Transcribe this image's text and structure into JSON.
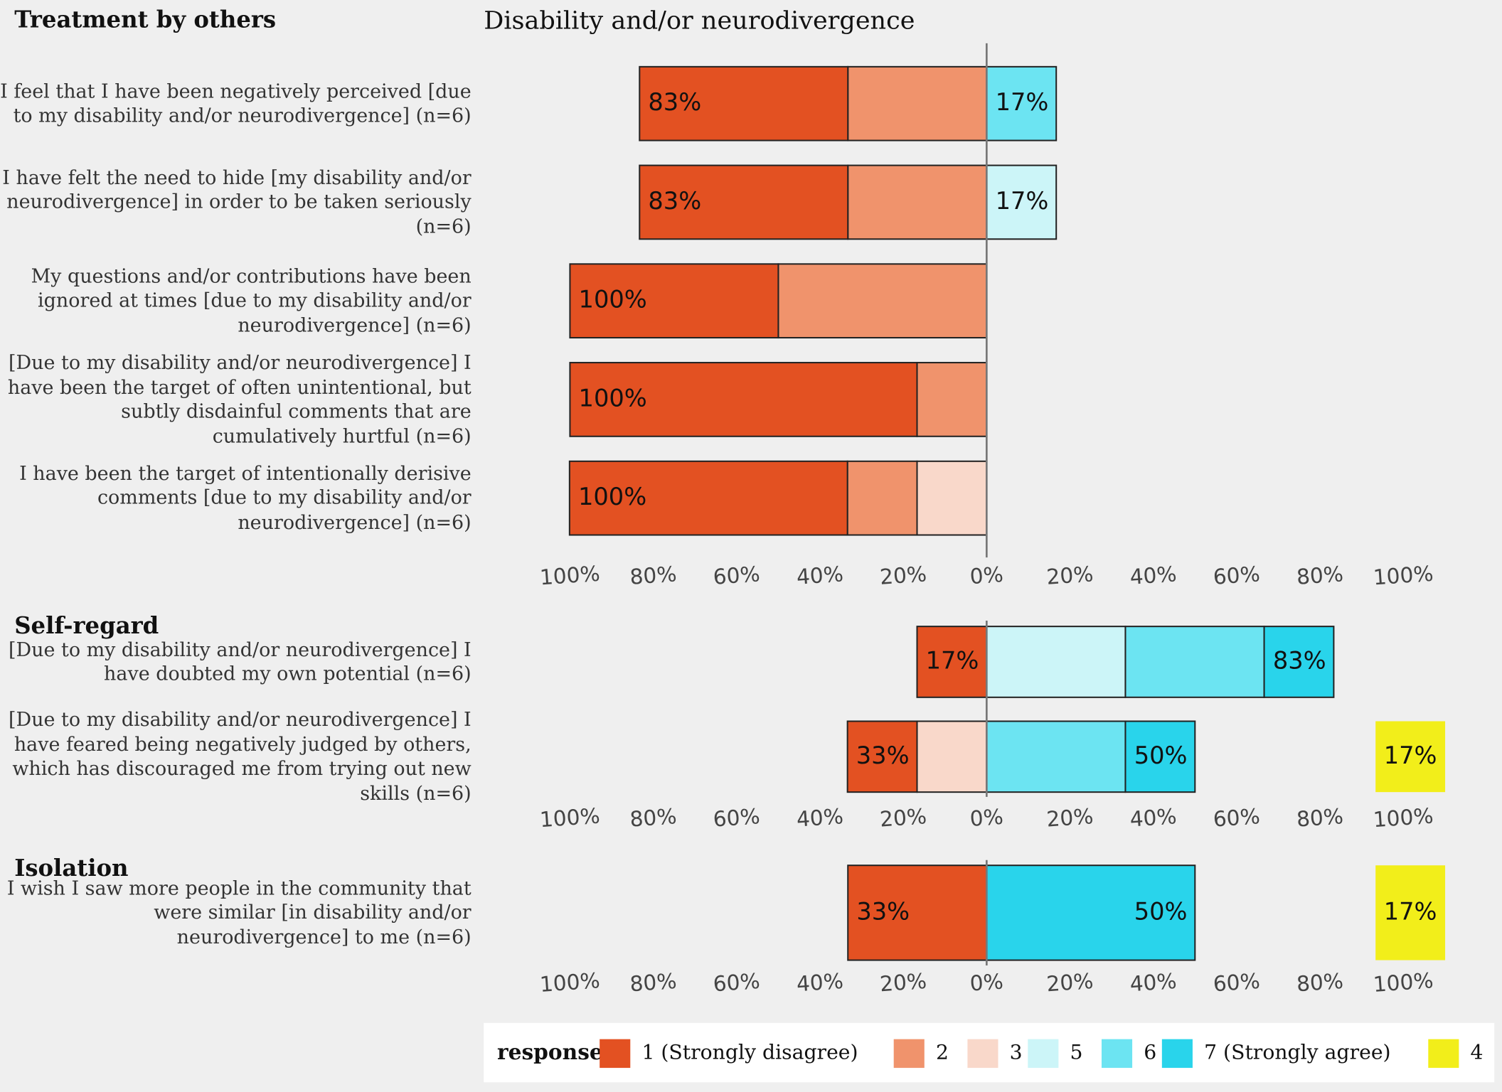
{
  "chart_data": [
    {
      "type": "diverging-bar",
      "title": "Treatment by others",
      "facet": "Disability and/or neurodivergence",
      "legend_title": "response",
      "categories": [
        "I feel that I have been negatively perceived [due to my disability and/or neurodivergence] (n=6)",
        "I have felt the need to hide [my disability and/or neurodivergence] in order to be taken seriously (n=6)",
        "My questions and/or contributions have been ignored at times [due to my disability and/or neurodivergence] (n=6)",
        "[Due to my disability and/or neurodivergence] I have been the target of often unintentional, but subtly disdainful comments that are cumulatively hurtful (n=6)",
        "I have been the target of intentionally derisive comments [due to my disability and/or neurodivergence] (n=6)"
      ],
      "series": [
        {
          "name": "1 (Strongly disagree)",
          "color": "#e35122",
          "side": "left",
          "values": [
            50,
            50,
            50,
            83.3,
            66.7
          ]
        },
        {
          "name": "2",
          "color": "#f0936c",
          "side": "left",
          "values": [
            33.3,
            33.3,
            50,
            16.7,
            16.7
          ]
        },
        {
          "name": "3",
          "color": "#f9d8ca",
          "side": "left",
          "values": [
            null,
            null,
            null,
            null,
            16.7
          ]
        },
        {
          "name": "5",
          "color": "#ccf5f8",
          "side": "right",
          "values": [
            null,
            16.7,
            null,
            null,
            null
          ]
        },
        {
          "name": "6",
          "color": "#6ce4f2",
          "side": "right",
          "values": [
            16.7,
            null,
            null,
            null,
            null
          ]
        },
        {
          "name": "7 (Strongly agree)",
          "color": "#29d4eb",
          "side": "right",
          "values": [
            null,
            null,
            null,
            null,
            null
          ]
        },
        {
          "name": "4",
          "color": "#f2ee1a",
          "side": "neutral",
          "values": [
            null,
            null,
            null,
            null,
            null
          ]
        }
      ],
      "left_totals": {
        "values": [
          83,
          83,
          100,
          100,
          100
        ],
        "value_labels": [
          "83%",
          "83%",
          "100%",
          "100%",
          "100%"
        ]
      },
      "right_totals": {
        "values": [
          17,
          17,
          null,
          null,
          null
        ],
        "value_labels": [
          "17%",
          "17%",
          null,
          null,
          null
        ]
      },
      "neutral_totals": {
        "values": [
          null,
          null,
          null,
          null,
          null
        ],
        "value_labels": [
          null,
          null,
          null,
          null,
          null
        ]
      },
      "xlim": [
        -100,
        100
      ],
      "xticks": [
        {
          "value": -100,
          "label": "100%"
        },
        {
          "value": -80,
          "label": "80%"
        },
        {
          "value": -60,
          "label": "60%"
        },
        {
          "value": -40,
          "label": "40%"
        },
        {
          "value": -20,
          "label": "20%"
        },
        {
          "value": 0,
          "label": "0%"
        },
        {
          "value": 20,
          "label": "20%"
        },
        {
          "value": 40,
          "label": "40%"
        },
        {
          "value": 60,
          "label": "60%"
        },
        {
          "value": 80,
          "label": "80%"
        },
        {
          "value": 100,
          "label": "100%"
        }
      ]
    },
    {
      "type": "diverging-bar",
      "title": "Self-regard",
      "categories": [
        "[Due to my disability and/or neurodivergence] I have doubted my own potential (n=6)",
        "[Due to my disability and/or neurodivergence] I have feared being negatively judged by others, which has discouraged me from trying out new skills (n=6)"
      ],
      "series": [
        {
          "name": "1 (Strongly disagree)",
          "color": "#e35122",
          "side": "left",
          "values": [
            16.7,
            16.7
          ]
        },
        {
          "name": "2",
          "color": "#f0936c",
          "side": "left",
          "values": [
            null,
            null
          ]
        },
        {
          "name": "3",
          "color": "#f9d8ca",
          "side": "left",
          "values": [
            null,
            16.7
          ]
        },
        {
          "name": "5",
          "color": "#ccf5f8",
          "side": "right",
          "values": [
            33.3,
            null
          ]
        },
        {
          "name": "6",
          "color": "#6ce4f2",
          "side": "right",
          "values": [
            33.3,
            33.3
          ]
        },
        {
          "name": "7 (Strongly agree)",
          "color": "#29d4eb",
          "side": "right",
          "values": [
            16.7,
            16.7
          ]
        },
        {
          "name": "4",
          "color": "#f2ee1a",
          "side": "neutral",
          "values": [
            null,
            16.7
          ]
        }
      ],
      "left_totals": {
        "values": [
          17,
          33
        ],
        "value_labels": [
          "17%",
          "33%"
        ]
      },
      "right_totals": {
        "values": [
          83,
          50
        ],
        "value_labels": [
          "83%",
          "50%"
        ]
      },
      "neutral_totals": {
        "values": [
          null,
          17
        ],
        "value_labels": [
          null,
          "17%"
        ]
      },
      "xlim": [
        -100,
        100
      ],
      "xticks": [
        {
          "value": -100,
          "label": "100%"
        },
        {
          "value": -80,
          "label": "80%"
        },
        {
          "value": -60,
          "label": "60%"
        },
        {
          "value": -40,
          "label": "40%"
        },
        {
          "value": -20,
          "label": "20%"
        },
        {
          "value": 0,
          "label": "0%"
        },
        {
          "value": 20,
          "label": "20%"
        },
        {
          "value": 40,
          "label": "40%"
        },
        {
          "value": 60,
          "label": "60%"
        },
        {
          "value": 80,
          "label": "80%"
        },
        {
          "value": 100,
          "label": "100%"
        }
      ]
    },
    {
      "type": "diverging-bar",
      "title": "Isolation",
      "categories": [
        "I wish I saw more people in the community that were similar [in disability and/or neurodivergence] to me (n=6)"
      ],
      "series": [
        {
          "name": "1 (Strongly disagree)",
          "color": "#e35122",
          "side": "left",
          "values": [
            33.3
          ]
        },
        {
          "name": "2",
          "color": "#f0936c",
          "side": "left",
          "values": [
            null
          ]
        },
        {
          "name": "3",
          "color": "#f9d8ca",
          "side": "left",
          "values": [
            null
          ]
        },
        {
          "name": "5",
          "color": "#ccf5f8",
          "side": "right",
          "values": [
            null
          ]
        },
        {
          "name": "6",
          "color": "#6ce4f2",
          "side": "right",
          "values": [
            null
          ]
        },
        {
          "name": "7 (Strongly agree)",
          "color": "#29d4eb",
          "side": "right",
          "values": [
            50
          ]
        },
        {
          "name": "4",
          "color": "#f2ee1a",
          "side": "neutral",
          "values": [
            16.7
          ]
        }
      ],
      "left_totals": {
        "values": [
          33
        ],
        "value_labels": [
          "33%"
        ]
      },
      "right_totals": {
        "values": [
          50
        ],
        "value_labels": [
          "50%"
        ]
      },
      "neutral_totals": {
        "values": [
          17
        ],
        "value_labels": [
          "17%"
        ]
      },
      "xlim": [
        -100,
        100
      ],
      "xticks": [
        {
          "value": -100,
          "label": "100%"
        },
        {
          "value": -80,
          "label": "80%"
        },
        {
          "value": -60,
          "label": "60%"
        },
        {
          "value": -40,
          "label": "40%"
        },
        {
          "value": -20,
          "label": "20%"
        },
        {
          "value": 0,
          "label": "0%"
        },
        {
          "value": 20,
          "label": "20%"
        },
        {
          "value": 40,
          "label": "40%"
        },
        {
          "value": 60,
          "label": "60%"
        },
        {
          "value": 80,
          "label": "80%"
        },
        {
          "value": 100,
          "label": "100%"
        }
      ]
    }
  ]
}
